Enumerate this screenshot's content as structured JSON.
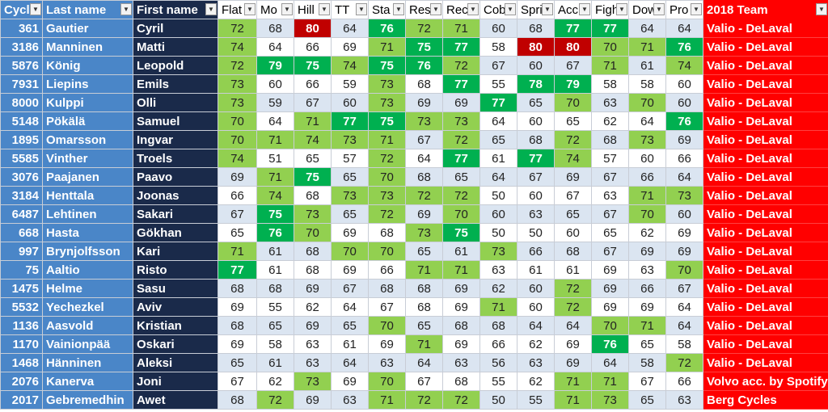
{
  "columns": [
    "Cycli",
    "Last name",
    "First name",
    "Flat",
    "Mo",
    "Hill",
    "TT",
    "Sta",
    "Res",
    "Rec",
    "Cob",
    "Spri",
    "Acc",
    "Figh",
    "Dow",
    "Pro",
    "2018 Team"
  ],
  "rows": [
    {
      "id": "361",
      "last": "Gautier",
      "first": "Cyril",
      "stats": [
        "72",
        "68",
        "80",
        "64",
        "76",
        "72",
        "71",
        "60",
        "68",
        "77",
        "77",
        "64",
        "64"
      ],
      "team": "Valio - DeLaval"
    },
    {
      "id": "3186",
      "last": "Manninen",
      "first": "Matti",
      "stats": [
        "74",
        "64",
        "66",
        "69",
        "71",
        "75",
        "77",
        "58",
        "80",
        "80",
        "70",
        "71",
        "76"
      ],
      "team": "Valio - DeLaval"
    },
    {
      "id": "5876",
      "last": "König",
      "first": "Leopold",
      "stats": [
        "72",
        "79",
        "75",
        "74",
        "75",
        "76",
        "72",
        "67",
        "60",
        "67",
        "71",
        "61",
        "74"
      ],
      "team": "Valio - DeLaval"
    },
    {
      "id": "7931",
      "last": "Liepins",
      "first": "Emils",
      "stats": [
        "73",
        "60",
        "66",
        "59",
        "73",
        "68",
        "77",
        "55",
        "78",
        "79",
        "58",
        "58",
        "60"
      ],
      "team": "Valio - DeLaval"
    },
    {
      "id": "8000",
      "last": "Kulppi",
      "first": "Olli",
      "stats": [
        "73",
        "59",
        "67",
        "60",
        "73",
        "69",
        "69",
        "77",
        "65",
        "70",
        "63",
        "70",
        "60"
      ],
      "team": "Valio - DeLaval"
    },
    {
      "id": "5148",
      "last": "Pökälä",
      "first": "Samuel",
      "stats": [
        "70",
        "64",
        "71",
        "77",
        "75",
        "73",
        "73",
        "64",
        "60",
        "65",
        "62",
        "64",
        "76"
      ],
      "team": "Valio - DeLaval"
    },
    {
      "id": "1895",
      "last": "Omarsson",
      "first": "Ingvar",
      "stats": [
        "70",
        "71",
        "74",
        "73",
        "71",
        "67",
        "72",
        "65",
        "68",
        "72",
        "68",
        "73",
        "69"
      ],
      "team": "Valio - DeLaval"
    },
    {
      "id": "5585",
      "last": "Vinther",
      "first": "Troels",
      "stats": [
        "74",
        "51",
        "65",
        "57",
        "72",
        "64",
        "77",
        "61",
        "77",
        "74",
        "57",
        "60",
        "66"
      ],
      "team": "Valio - DeLaval"
    },
    {
      "id": "3076",
      "last": "Paajanen",
      "first": "Paavo",
      "stats": [
        "69",
        "71",
        "75",
        "65",
        "70",
        "68",
        "65",
        "64",
        "67",
        "69",
        "67",
        "66",
        "64"
      ],
      "team": "Valio - DeLaval"
    },
    {
      "id": "3184",
      "last": "Henttala",
      "first": "Joonas",
      "stats": [
        "66",
        "74",
        "68",
        "73",
        "73",
        "72",
        "72",
        "50",
        "60",
        "67",
        "63",
        "71",
        "73"
      ],
      "team": "Valio - DeLaval"
    },
    {
      "id": "6487",
      "last": "Lehtinen",
      "first": "Sakari",
      "stats": [
        "67",
        "75",
        "73",
        "65",
        "72",
        "69",
        "70",
        "60",
        "63",
        "65",
        "67",
        "70",
        "60"
      ],
      "team": "Valio - DeLaval"
    },
    {
      "id": "668",
      "last": "Hasta",
      "first": "Gökhan",
      "stats": [
        "65",
        "76",
        "70",
        "69",
        "68",
        "73",
        "75",
        "50",
        "50",
        "60",
        "65",
        "62",
        "69"
      ],
      "team": "Valio - DeLaval"
    },
    {
      "id": "997",
      "last": "Brynjolfsson",
      "first": "Kari",
      "stats": [
        "71",
        "61",
        "68",
        "70",
        "70",
        "65",
        "61",
        "73",
        "66",
        "68",
        "67",
        "69",
        "69"
      ],
      "team": "Valio - DeLaval"
    },
    {
      "id": "75",
      "last": "Aaltio",
      "first": "Risto",
      "stats": [
        "77",
        "61",
        "68",
        "69",
        "66",
        "71",
        "71",
        "63",
        "61",
        "61",
        "69",
        "63",
        "70"
      ],
      "team": "Valio - DeLaval"
    },
    {
      "id": "1475",
      "last": "Helme",
      "first": "Sasu",
      "stats": [
        "68",
        "68",
        "69",
        "67",
        "68",
        "68",
        "69",
        "62",
        "60",
        "72",
        "69",
        "66",
        "67"
      ],
      "team": "Valio - DeLaval"
    },
    {
      "id": "5532",
      "last": "Yechezkel",
      "first": "Aviv",
      "stats": [
        "69",
        "55",
        "62",
        "64",
        "67",
        "68",
        "69",
        "71",
        "60",
        "72",
        "69",
        "69",
        "64"
      ],
      "team": "Valio - DeLaval"
    },
    {
      "id": "1136",
      "last": "Aasvold",
      "first": "Kristian",
      "stats": [
        "68",
        "65",
        "69",
        "65",
        "70",
        "65",
        "68",
        "68",
        "64",
        "64",
        "70",
        "71",
        "64"
      ],
      "team": "Valio - DeLaval"
    },
    {
      "id": "1170",
      "last": "Vainionpää",
      "first": "Oskari",
      "stats": [
        "69",
        "58",
        "63",
        "61",
        "69",
        "71",
        "69",
        "66",
        "62",
        "69",
        "76",
        "65",
        "58"
      ],
      "team": "Valio - DeLaval"
    },
    {
      "id": "1468",
      "last": "Hänninen",
      "first": "Aleksi",
      "stats": [
        "65",
        "61",
        "63",
        "64",
        "63",
        "64",
        "63",
        "56",
        "63",
        "69",
        "64",
        "58",
        "72"
      ],
      "team": "Valio - DeLaval"
    },
    {
      "id": "2076",
      "last": "Kanerva",
      "first": "Joni",
      "stats": [
        "67",
        "62",
        "73",
        "69",
        "70",
        "67",
        "68",
        "55",
        "62",
        "71",
        "71",
        "67",
        "66"
      ],
      "team": "Volvo acc. by Spotify"
    },
    {
      "id": "2017",
      "last": "Gebremedhin",
      "first": "Awet",
      "stats": [
        "68",
        "72",
        "69",
        "63",
        "71",
        "72",
        "72",
        "50",
        "55",
        "71",
        "73",
        "65",
        "63"
      ],
      "team": "Berg Cycles"
    }
  ],
  "colors": {
    "id_col": "#4a86c8",
    "first_col": "#1a2a4a",
    "team_col": "#ff0000",
    "row_alt": "#dbe5f1",
    "light_green": "#92d050",
    "dark_green": "#00b050",
    "dark_red": "#c00000"
  }
}
